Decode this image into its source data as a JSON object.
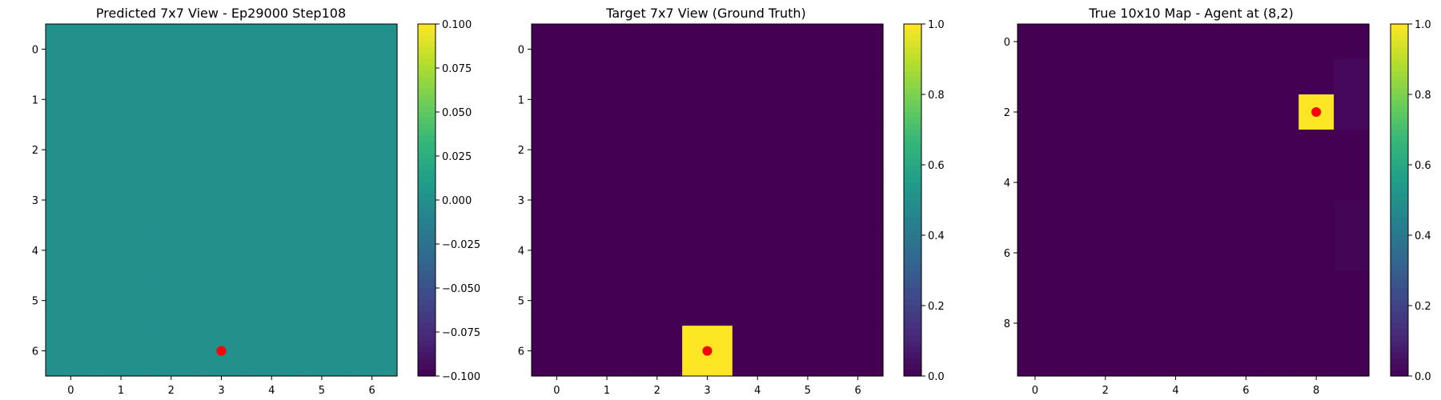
{
  "chart_data": [
    {
      "type": "heatmap",
      "title": "Predicted 7x7 View - Ep29000 Step108",
      "rows": 7,
      "cols": 7,
      "x_ticks": [
        0,
        1,
        2,
        3,
        4,
        5,
        6
      ],
      "y_ticks": [
        0,
        1,
        2,
        3,
        4,
        5,
        6
      ],
      "values": [
        [
          0,
          0,
          0,
          0,
          0,
          0,
          0
        ],
        [
          0,
          0,
          0,
          0,
          0,
          0,
          0
        ],
        [
          0,
          0,
          0,
          0,
          0,
          0,
          0
        ],
        [
          0,
          0,
          0,
          0,
          0,
          0,
          0
        ],
        [
          0,
          0,
          0,
          0,
          0,
          0,
          0
        ],
        [
          0,
          0,
          0,
          0,
          0,
          0,
          0
        ],
        [
          0,
          0,
          0,
          0,
          0,
          0,
          0
        ]
      ],
      "vmin": -0.1,
      "vmax": 0.1,
      "colorbar_ticks": [
        "0.100",
        "0.075",
        "0.050",
        "0.025",
        "0.000",
        "−0.025",
        "−0.050",
        "−0.075",
        "−0.100"
      ],
      "colorbar_tick_values": [
        0.1,
        0.075,
        0.05,
        0.025,
        0.0,
        -0.025,
        -0.05,
        -0.075,
        -0.1
      ],
      "marker": {
        "x": 3,
        "y": 6,
        "color": "#ff0000"
      }
    },
    {
      "type": "heatmap",
      "title": "Target 7x7 View (Ground Truth)",
      "rows": 7,
      "cols": 7,
      "x_ticks": [
        0,
        1,
        2,
        3,
        4,
        5,
        6
      ],
      "y_ticks": [
        0,
        1,
        2,
        3,
        4,
        5,
        6
      ],
      "values": [
        [
          0,
          0,
          0,
          0,
          0,
          0,
          0
        ],
        [
          0,
          0,
          0,
          0,
          0,
          0,
          0
        ],
        [
          0,
          0,
          0,
          0,
          0,
          0,
          0
        ],
        [
          0,
          0,
          0,
          0,
          0,
          0,
          0
        ],
        [
          0,
          0,
          0,
          0,
          0,
          0,
          0
        ],
        [
          0,
          0,
          0,
          0,
          0,
          0,
          0
        ],
        [
          0,
          0,
          0,
          1,
          0,
          0,
          0
        ]
      ],
      "vmin": 0,
      "vmax": 1,
      "colorbar_ticks": [
        "1.0",
        "0.8",
        "0.6",
        "0.4",
        "0.2",
        "0.0"
      ],
      "colorbar_tick_values": [
        1.0,
        0.8,
        0.6,
        0.4,
        0.2,
        0.0
      ],
      "marker": {
        "x": 3,
        "y": 6,
        "color": "#ff0000"
      }
    },
    {
      "type": "heatmap",
      "title": "True 10x10 Map - Agent at (8,2)",
      "rows": 10,
      "cols": 10,
      "x_ticks": [
        0,
        2,
        4,
        6,
        8
      ],
      "y_ticks": [
        0,
        2,
        4,
        6,
        8
      ],
      "values": [
        [
          0,
          0,
          0,
          0,
          0,
          0,
          0,
          0,
          0,
          0
        ],
        [
          0,
          0,
          0,
          0,
          0,
          0,
          0,
          0,
          0,
          0.02
        ],
        [
          0,
          0,
          0,
          0,
          0,
          0,
          0,
          0,
          1,
          0.02
        ],
        [
          0,
          0,
          0,
          0,
          0,
          0,
          0,
          0,
          0,
          0
        ],
        [
          0,
          0,
          0,
          0,
          0,
          0,
          0,
          0,
          0,
          0
        ],
        [
          0,
          0,
          0,
          0,
          0,
          0,
          0,
          0,
          0,
          0.01
        ],
        [
          0,
          0,
          0,
          0,
          0,
          0,
          0,
          0,
          0,
          0.01
        ],
        [
          0,
          0,
          0,
          0,
          0,
          0,
          0,
          0,
          0,
          0
        ],
        [
          0,
          0,
          0,
          0,
          0,
          0,
          0,
          0,
          0,
          0
        ],
        [
          0,
          0,
          0,
          0,
          0,
          0,
          0,
          0,
          0,
          0
        ]
      ],
      "vmin": 0,
      "vmax": 1,
      "colorbar_ticks": [
        "1.0",
        "0.8",
        "0.6",
        "0.4",
        "0.2",
        "0.0"
      ],
      "colorbar_tick_values": [
        1.0,
        0.8,
        0.6,
        0.4,
        0.2,
        0.0
      ],
      "marker": {
        "x": 8,
        "y": 2,
        "color": "#ff0000"
      }
    }
  ],
  "colormap": "viridis",
  "colors": {
    "marker": "#ff0000",
    "axes_edge": "#000000",
    "background": "#ffffff"
  }
}
